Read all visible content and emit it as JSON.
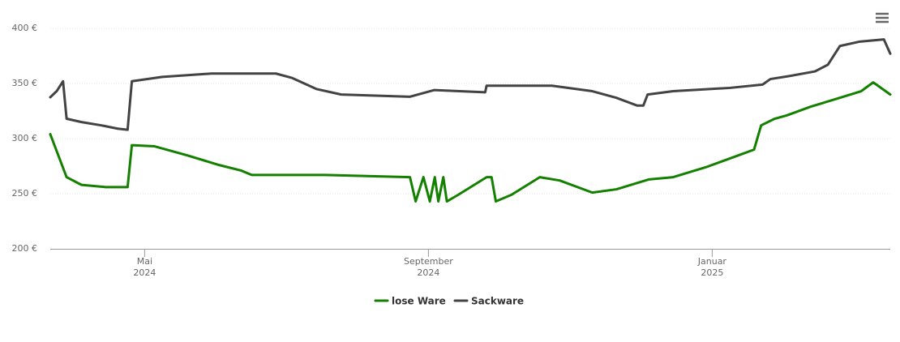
{
  "chart_data": {
    "type": "line",
    "x": [],
    "series": [
      {
        "name": "lose Ware",
        "color": "#138000",
        "x": [
          2.67,
          2.9,
          3.11,
          3.45,
          3.76,
          3.82,
          4.14,
          4.59,
          5.05,
          5.36,
          5.51,
          6.54,
          7.74,
          7.82,
          7.93,
          8.02,
          8.09,
          8.14,
          8.21,
          8.26,
          8.42,
          8.82,
          8.89,
          8.95,
          9.17,
          9.57,
          9.85,
          10.31,
          10.65,
          11.11,
          11.45,
          11.91,
          12.42,
          12.59,
          12.69,
          12.88,
          13.05,
          13.39,
          13.85,
          14.1,
          14.27,
          14.51
        ],
        "values": [
          304,
          265,
          258,
          256,
          256,
          294,
          293,
          285,
          276,
          271,
          267,
          267,
          265,
          243,
          265,
          243,
          265,
          243,
          265,
          243,
          249,
          265,
          265,
          243,
          249,
          265,
          262,
          251,
          254,
          263,
          265,
          274,
          286,
          290,
          312,
          318,
          321,
          329,
          338,
          343,
          351,
          340
        ]
      },
      {
        "name": "Sackware",
        "color": "#434343",
        "x": [
          2.67,
          2.76,
          2.85,
          2.9,
          3.11,
          3.39,
          3.62,
          3.76,
          3.82,
          4.25,
          4.94,
          5.85,
          6.08,
          6.42,
          6.77,
          7.74,
          8.08,
          8.8,
          8.82,
          9.74,
          10.31,
          10.65,
          10.94,
          11.03,
          11.09,
          11.45,
          12.25,
          12.71,
          12.82,
          13.11,
          13.45,
          13.63,
          13.8,
          14.08,
          14.42,
          14.51
        ],
        "values": [
          337.5,
          343,
          352,
          318,
          315,
          312,
          309,
          308,
          352,
          356,
          359,
          359,
          355,
          345,
          340,
          338,
          344,
          342,
          348,
          348,
          343,
          337,
          330,
          330,
          340,
          343,
          346,
          349,
          354,
          357,
          361,
          367,
          384,
          388,
          390,
          377
        ]
      }
    ],
    "xlim": [
      2.67,
      14.51
    ],
    "xticks": [
      {
        "value": 4,
        "label": "Mai 2024"
      },
      {
        "value": 8,
        "label": "September 2024"
      },
      {
        "value": 12,
        "label": "Januar 2025"
      }
    ],
    "ylim": [
      200,
      400
    ],
    "yticks": [
      {
        "value": 200,
        "label": "200 €"
      },
      {
        "value": 250,
        "label": "250 €"
      },
      {
        "value": 300,
        "label": "300 €"
      },
      {
        "value": 350,
        "label": "350 €"
      },
      {
        "value": 400,
        "label": "400 €"
      }
    ],
    "grid": true,
    "legend": "bottom"
  }
}
